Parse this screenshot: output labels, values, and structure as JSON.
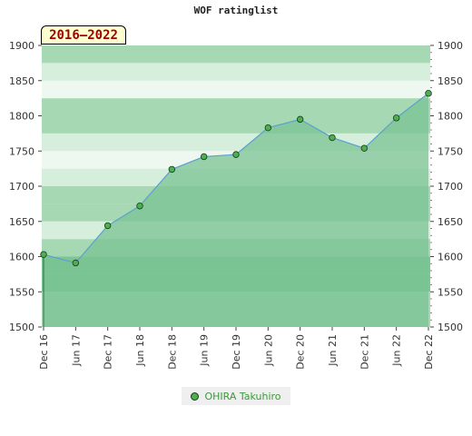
{
  "chart_data": {
    "type": "area",
    "title": "WOF ratinglist",
    "period_label": "2016–2022",
    "ylim": [
      1500,
      1900
    ],
    "y_ticks": [
      1500,
      1550,
      1600,
      1650,
      1700,
      1750,
      1800,
      1850,
      1900
    ],
    "x_ticks": [
      "Dec 16",
      "Jun 17",
      "Dec 17",
      "Jun 18",
      "Dec 18",
      "Jun 19",
      "Dec 19",
      "Jun 20",
      "Dec 20",
      "Jun 21",
      "Dec 21",
      "Jun 22",
      "Dec 22"
    ],
    "series": [
      {
        "name": "OHIRA Takuhiro",
        "values": [
          1603,
          1591,
          1644,
          1672,
          1724,
          1742,
          1745,
          1783,
          1795,
          1769,
          1754,
          1797,
          1832
        ]
      }
    ],
    "legend_position": "bottom",
    "colors": {
      "band_dark": "#7cc595",
      "band_mid": "#a6d8b4",
      "band_light": "#d6efdc",
      "band_lightest": "#eef8f0",
      "area_fill": "#7ac393",
      "line": "#5aa0d0",
      "marker": "#4caf50",
      "marker_edge": "#1a3a1a"
    }
  }
}
